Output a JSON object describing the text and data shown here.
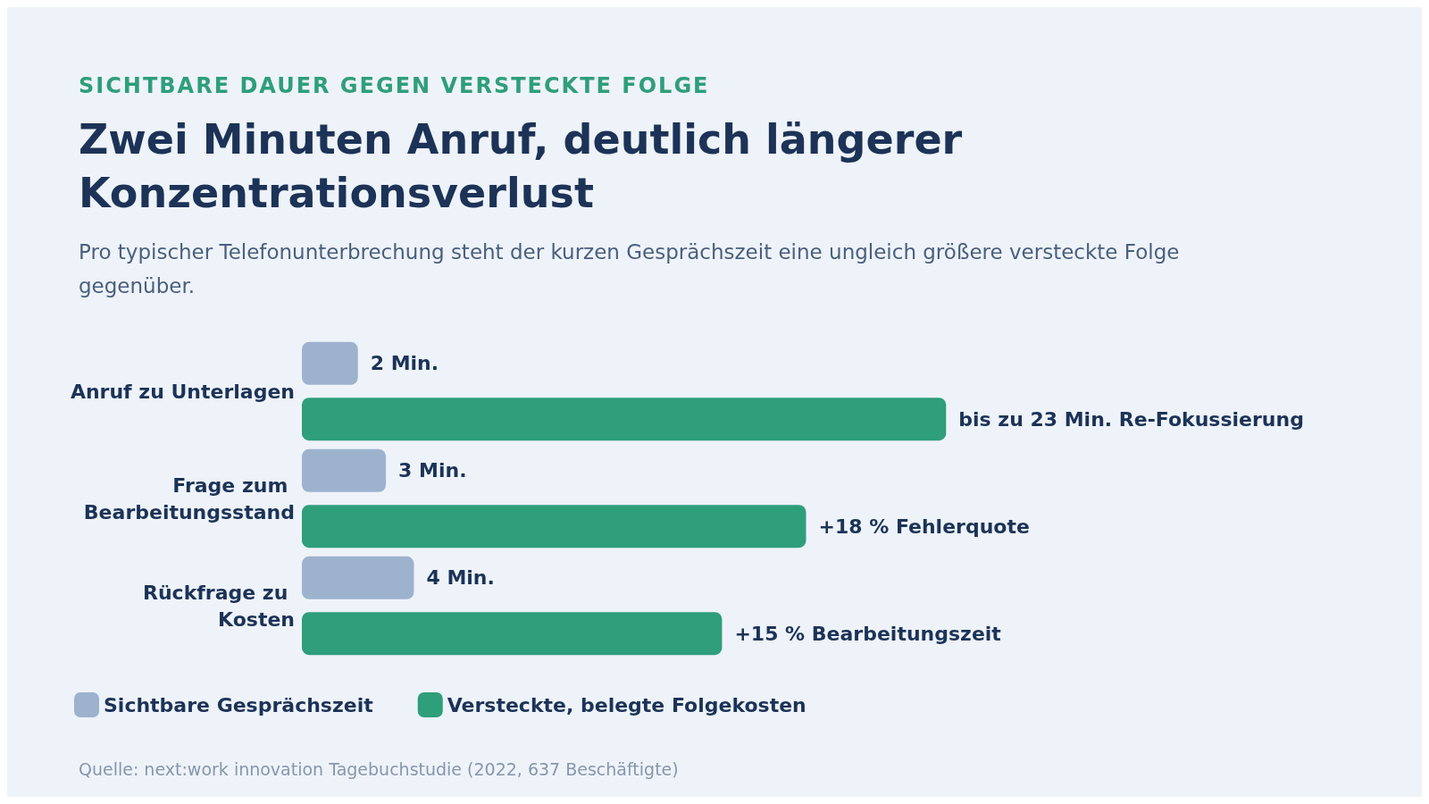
{
  "chart_data": {
    "type": "bar",
    "orientation": "horizontal",
    "title": "Zwei Minuten Anruf, deutlich längerer Konzentrationsverlust",
    "subtitle": "Pro typischer Telefonunterbrechung steht der kurzen Gesprächszeit eine ungleich größere versteckte Folge gegenüber.",
    "annotations": [
      "SICHTBARE DAUER GEGEN VERSTECKTE FOLGE",
      "Quelle: next:work innovation Tagebuchstudie (2022, 637 Beschäftigte)"
    ],
    "categories": [
      "Anruf zu Unterlagen",
      "Frage zum Bearbeitungsstand",
      "Rückfrage zu Kosten"
    ],
    "series": [
      {
        "name": "Sichtbare Gesprächszeit",
        "color": "#9db2cd",
        "values": [
          2,
          3,
          4
        ],
        "value_labels": [
          "2 Min.",
          "3 Min.",
          "4 Min."
        ]
      },
      {
        "name": "Versteckte, belegte Folgekosten",
        "color": "#2e9e7b",
        "values": [
          23,
          18,
          15
        ],
        "value_labels": [
          "bis zu 23 Min. Re-Fokussierung",
          "+18 % Fehlerquote",
          "+15 % Bearbeitungszeit"
        ]
      }
    ],
    "legend": "bottom left"
  }
}
